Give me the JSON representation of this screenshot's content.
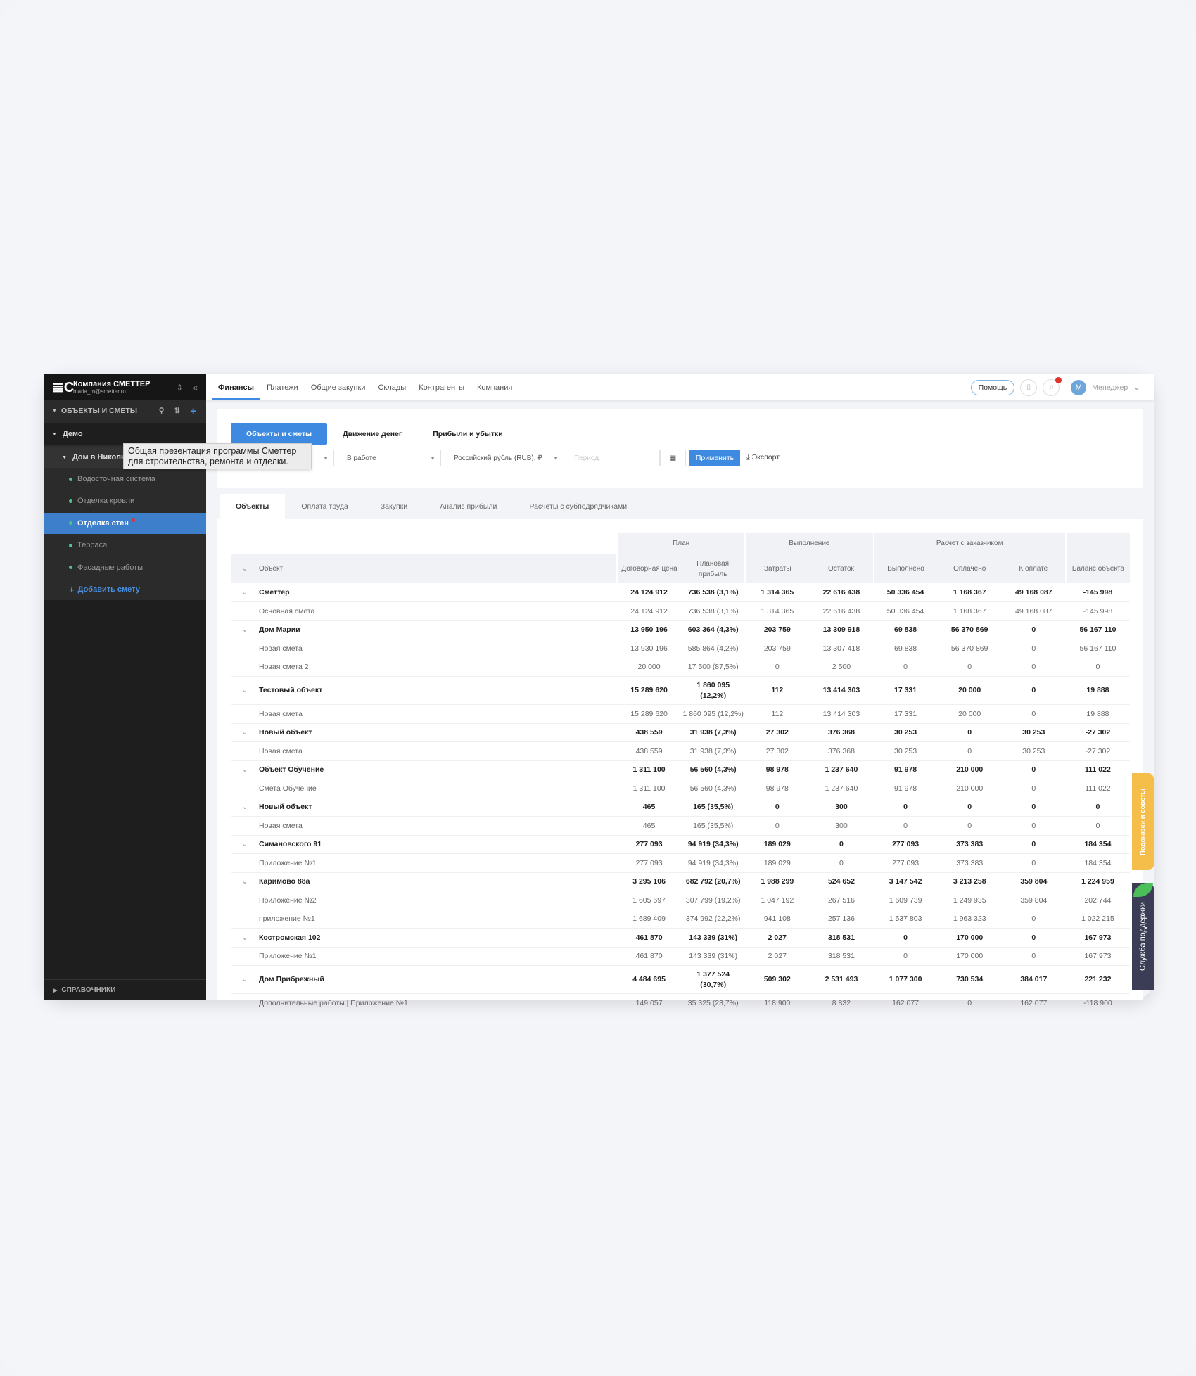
{
  "sidebar": {
    "logo": "≣C",
    "company": "Компания СМЕТТЕР",
    "email": "maria_m@smetter.ru",
    "section": "ОБЪЕКТЫ И СМЕТЫ",
    "group": "Демо",
    "object": "Дом в Никольском",
    "items": [
      {
        "label": "Водосточная система",
        "active": false
      },
      {
        "label": "Отделка кровли",
        "active": false
      },
      {
        "label": "Отделка стен",
        "active": true
      },
      {
        "label": "Терраса",
        "active": false
      },
      {
        "label": "Фасадные работы",
        "active": false
      }
    ],
    "add": "Добавить смету",
    "footer": "СПРАВОЧНИКИ"
  },
  "topbar": {
    "nav": [
      "Финансы",
      "Платежи",
      "Общие закупки",
      "Склады",
      "Контрагенты",
      "Компания"
    ],
    "active": 0,
    "help": "Помощь",
    "avatar": "М",
    "user": "Менеджер"
  },
  "finance": {
    "tabs": [
      "Объекты и сметы",
      "Движение денег",
      "Прибыли и убытки"
    ],
    "status": "В работе",
    "currency": "Российский рубль (RUB), ₽",
    "period_placeholder": "Период",
    "apply": "Применить",
    "export": "Экспорт"
  },
  "tooltip": {
    "line1": "Общая презентация программы Сметтер",
    "line2": "для строительства, ремонта и отделки."
  },
  "subtabs": [
    "Объекты",
    "Оплата труда",
    "Закупки",
    "Анализ прибыли",
    "Расчеты с субподрядчиками"
  ],
  "table": {
    "groups": [
      "План",
      "Выполнение",
      "Расчет с заказчиком"
    ],
    "columns": [
      "Объект",
      "Договорная цена",
      "Плановая прибыль",
      "Затраты",
      "Остаток",
      "Выполнено",
      "Оплачено",
      "К оплате",
      "Баланс объекта"
    ],
    "rows": [
      {
        "type": "group",
        "cells": [
          "Сметтер",
          "24 124 912",
          "736 538 (3,1%)",
          "1 314 365",
          "22 616 438",
          "50 336 454",
          "1 168 367",
          "49 168 087",
          "-145 998"
        ]
      },
      {
        "type": "child",
        "cells": [
          "Основная смета",
          "24 124 912",
          "736 538 (3,1%)",
          "1 314 365",
          "22 616 438",
          "50 336 454",
          "1 168 367",
          "49 168 087",
          "-145 998"
        ]
      },
      {
        "type": "group",
        "cells": [
          "Дом Марии",
          "13 950 196",
          "603 364 (4,3%)",
          "203 759",
          "13 309 918",
          "69 838",
          "56 370 869",
          "0",
          "56 167 110"
        ]
      },
      {
        "type": "child",
        "cells": [
          "Новая смета",
          "13 930 196",
          "585 864 (4,2%)",
          "203 759",
          "13 307 418",
          "69 838",
          "56 370 869",
          "0",
          "56 167 110"
        ]
      },
      {
        "type": "child",
        "cells": [
          "Новая смета 2",
          "20 000",
          "17 500 (87,5%)",
          "0",
          "2 500",
          "0",
          "0",
          "0",
          "0"
        ]
      },
      {
        "type": "group",
        "tall": true,
        "cells": [
          "Тестовый объект",
          "15 289 620",
          "1 860 095 (12,2%)",
          "112",
          "13 414 303",
          "17 331",
          "20 000",
          "0",
          "19 888"
        ]
      },
      {
        "type": "child",
        "cells": [
          "Новая смета",
          "15 289 620",
          "1 860 095 (12,2%)",
          "112",
          "13 414 303",
          "17 331",
          "20 000",
          "0",
          "19 888"
        ]
      },
      {
        "type": "group",
        "cells": [
          "Новый объект",
          "438 559",
          "31 938 (7,3%)",
          "27 302",
          "376 368",
          "30 253",
          "0",
          "30 253",
          "-27 302"
        ]
      },
      {
        "type": "child",
        "cells": [
          "Новая смета",
          "438 559",
          "31 938 (7,3%)",
          "27 302",
          "376 368",
          "30 253",
          "0",
          "30 253",
          "-27 302"
        ]
      },
      {
        "type": "group",
        "cells": [
          "Объект Обучение",
          "1 311 100",
          "56 560 (4,3%)",
          "98 978",
          "1 237 640",
          "91 978",
          "210 000",
          "0",
          "111 022"
        ]
      },
      {
        "type": "child",
        "cells": [
          "Смета Обучение",
          "1 311 100",
          "56 560 (4,3%)",
          "98 978",
          "1 237 640",
          "91 978",
          "210 000",
          "0",
          "111 022"
        ]
      },
      {
        "type": "group",
        "cells": [
          "Новый объект",
          "465",
          "165 (35,5%)",
          "0",
          "300",
          "0",
          "0",
          "0",
          "0"
        ]
      },
      {
        "type": "child",
        "cells": [
          "Новая смета",
          "465",
          "165 (35,5%)",
          "0",
          "300",
          "0",
          "0",
          "0",
          "0"
        ]
      },
      {
        "type": "group",
        "cells": [
          "Симановского 91",
          "277 093",
          "94 919 (34,3%)",
          "189 029",
          "0",
          "277 093",
          "373 383",
          "0",
          "184 354"
        ]
      },
      {
        "type": "child",
        "cells": [
          "Приложение №1",
          "277 093",
          "94 919 (34,3%)",
          "189 029",
          "0",
          "277 093",
          "373 383",
          "0",
          "184 354"
        ]
      },
      {
        "type": "group",
        "cells": [
          "Каримово 88а",
          "3 295 106",
          "682 792 (20,7%)",
          "1 988 299",
          "524 652",
          "3 147 542",
          "3 213 258",
          "359 804",
          "1 224 959"
        ]
      },
      {
        "type": "child",
        "cells": [
          "Приложение №2",
          "1 605 697",
          "307 799 (19,2%)",
          "1 047 192",
          "267 516",
          "1 609 739",
          "1 249 935",
          "359 804",
          "202 744"
        ]
      },
      {
        "type": "child",
        "cells": [
          "приложение №1",
          "1 689 409",
          "374 992 (22,2%)",
          "941 108",
          "257 136",
          "1 537 803",
          "1 963 323",
          "0",
          "1 022 215"
        ]
      },
      {
        "type": "group",
        "cells": [
          "Костромская 102",
          "461 870",
          "143 339 (31%)",
          "2 027",
          "318 531",
          "0",
          "170 000",
          "0",
          "167 973"
        ]
      },
      {
        "type": "child",
        "cells": [
          "Приложение №1",
          "461 870",
          "143 339 (31%)",
          "2 027",
          "318 531",
          "0",
          "170 000",
          "0",
          "167 973"
        ]
      },
      {
        "type": "group",
        "tall": true,
        "cells": [
          "Дом Прибрежный",
          "4 484 695",
          "1 377 524 (30,7%)",
          "509 302",
          "2 531 493",
          "1 077 300",
          "730 534",
          "384 017",
          "221 232"
        ]
      },
      {
        "type": "child",
        "cells": [
          "Дополнительные работы | Приложение №1",
          "149 057",
          "35 325 (23,7%)",
          "118 900",
          "8 832",
          "162 077",
          "0",
          "162 077",
          "-118 900"
        ]
      }
    ]
  },
  "widgets": {
    "tips": "Подсказки и советы",
    "support": "Служба поддержки"
  },
  "colors": {
    "accent": "#3d8ae0",
    "sidebar": "#1e1e1e",
    "tips": "#f5be4b",
    "support": "#3a3d55",
    "dot": "#4fc48a"
  }
}
